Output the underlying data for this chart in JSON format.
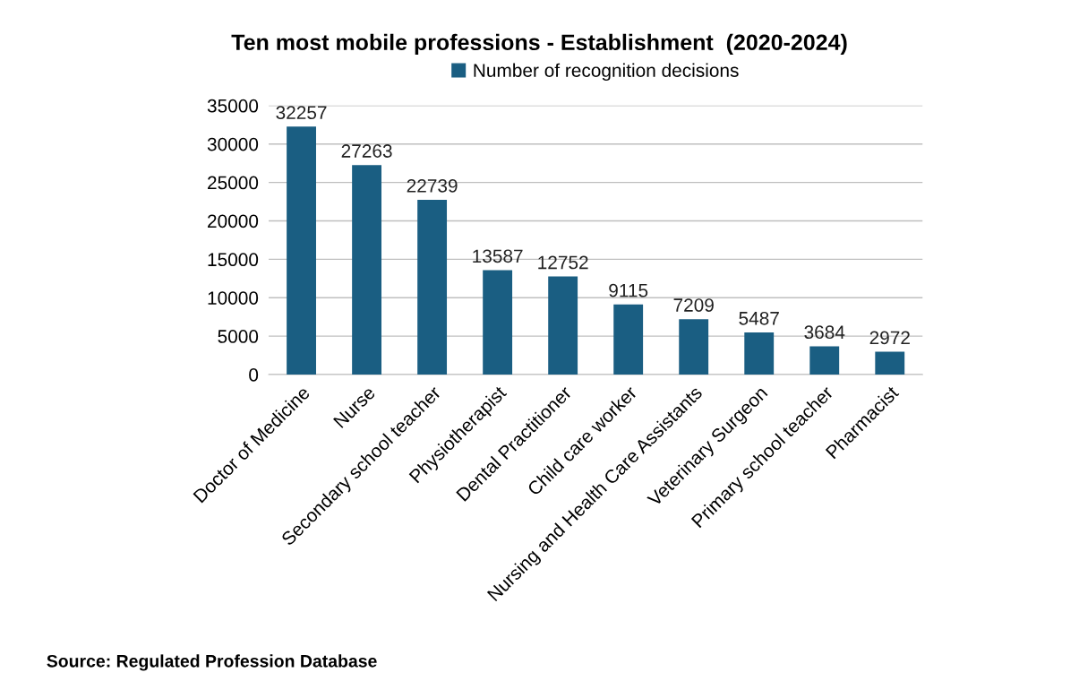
{
  "chart_data": {
    "type": "bar",
    "title": "Ten most mobile professions - Establishment  (2020-2024)",
    "categories": [
      "Doctor of Medicine",
      "Nurse",
      "Secondary school teacher",
      "Physiotherapist",
      "Dental Practitioner",
      "Child care worker",
      "Nursing and Health Care Assistants",
      "Veterinary Surgeon",
      "Primary school teacher",
      "Pharmacist"
    ],
    "series": [
      {
        "name": "Number of recognition decisions",
        "color": "#1a5e82",
        "values": [
          32257,
          27263,
          22739,
          13587,
          12752,
          9115,
          7209,
          5487,
          3684,
          2972
        ]
      }
    ],
    "ylim": [
      0,
      35000
    ],
    "yticks": [
      0,
      5000,
      10000,
      15000,
      20000,
      25000,
      30000,
      35000
    ],
    "grid": "y",
    "legend": "top",
    "data_labels": true,
    "annotations": [
      "Source: Regulated Profession Database"
    ]
  }
}
